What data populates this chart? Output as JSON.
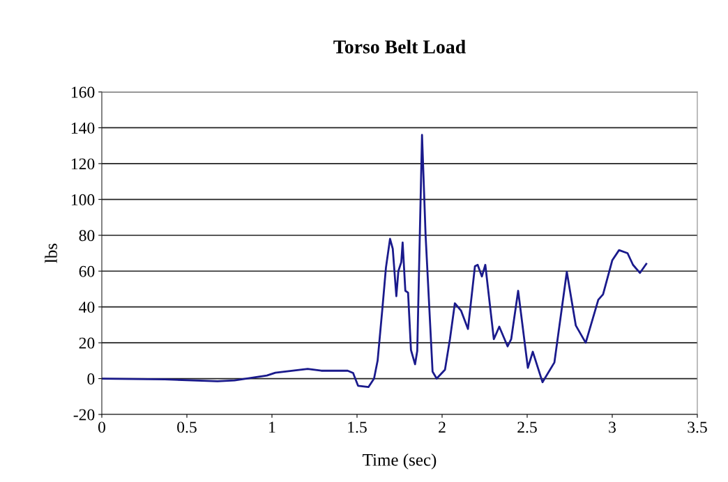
{
  "chart_data": {
    "type": "line",
    "title": "Torso Belt Load",
    "xlabel": "Time (sec)",
    "ylabel": "lbs",
    "x": [
      0,
      0.37,
      0.68,
      0.78,
      0.97,
      1.02,
      1.21,
      1.29,
      1.445,
      1.477,
      1.506,
      1.567,
      1.6,
      1.621,
      1.649,
      1.67,
      1.694,
      1.71,
      1.731,
      1.743,
      1.76,
      1.768,
      1.784,
      1.8,
      1.817,
      1.841,
      1.854,
      1.882,
      1.903,
      1.944,
      1.968,
      2.017,
      2.046,
      2.075,
      2.111,
      2.152,
      2.193,
      2.209,
      2.234,
      2.254,
      2.304,
      2.336,
      2.385,
      2.406,
      2.447,
      2.504,
      2.533,
      2.59,
      2.66,
      2.733,
      2.786,
      2.844,
      2.918,
      2.946,
      3.0,
      3.04,
      3.09,
      3.122,
      3.163,
      3.2
    ],
    "series": [
      {
        "color": "#1a1a8c",
        "values": [
          0,
          -0.4,
          -1.5,
          -1,
          1.7,
          3.3,
          5.4,
          4.4,
          4.4,
          3.1,
          -4,
          -4.7,
          0,
          10,
          39,
          62,
          78,
          72.5,
          46,
          60,
          65,
          76,
          49,
          48,
          16,
          8,
          15.5,
          136,
          80,
          3.9,
          0,
          5,
          22,
          42,
          38,
          27.7,
          62.7,
          63.5,
          57,
          63.5,
          22,
          29,
          18,
          22,
          49,
          6,
          15,
          -2,
          9,
          59.6,
          29.6,
          20,
          44,
          47,
          66,
          71.7,
          70,
          63.5,
          59,
          64
        ]
      }
    ],
    "xlim": [
      0,
      3.5
    ],
    "xticks": [
      0,
      0.5,
      1,
      1.5,
      2,
      2.5,
      3,
      3.5
    ],
    "ylim": [
      -20,
      160
    ],
    "yticks": [
      -20,
      0,
      20,
      40,
      60,
      80,
      100,
      120,
      140,
      160
    ],
    "grid": "y",
    "legend": false,
    "marker": "none",
    "line_style": "solid"
  }
}
